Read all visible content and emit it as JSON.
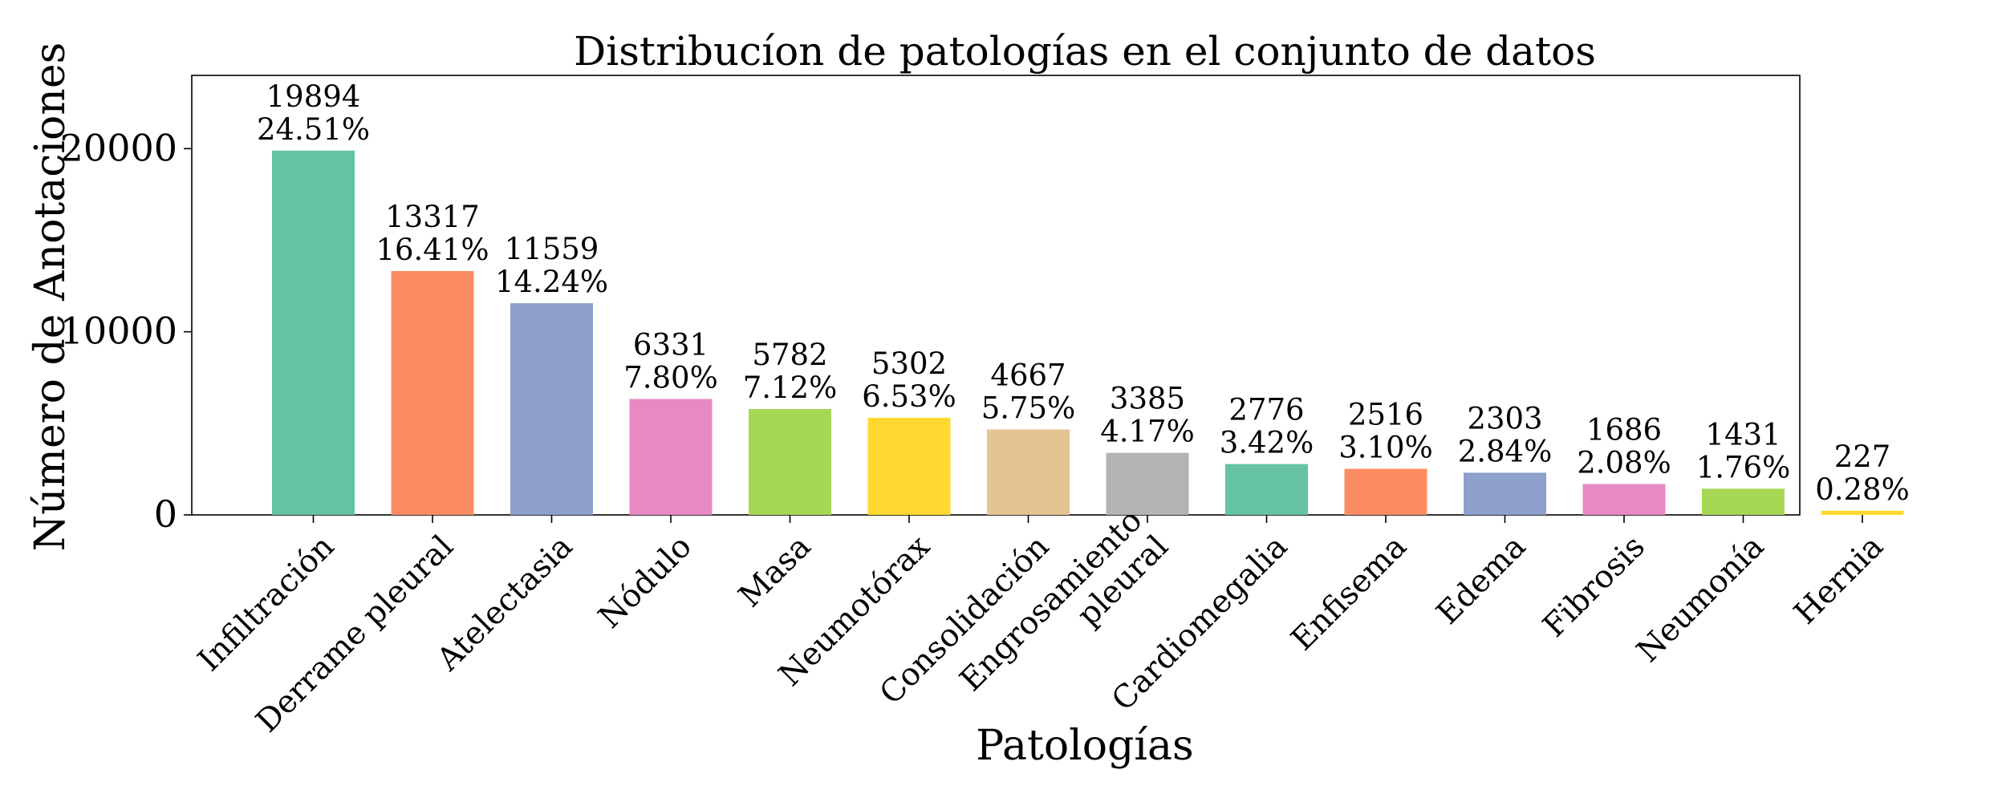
{
  "chart_data": {
    "type": "bar",
    "title": "Distribucíon de patologías en el conjunto de datos",
    "xlabel": "Patologías",
    "ylabel": "Número de Anotaciones",
    "ylim": [
      0,
      24000
    ],
    "yticks": [
      0,
      10000,
      20000
    ],
    "grid": false,
    "legend": "none",
    "categories": [
      "Infiltración",
      "Derrame pleural",
      "Atelectasia",
      "Nódulo",
      "Masa",
      "Neumotórax",
      "Consolidación",
      "Engrosamiento pleural",
      "Cardiomegalia",
      "Enfisema",
      "Edema",
      "Fibrosis",
      "Neumonía",
      "Hernia"
    ],
    "category_lines": [
      [
        "Infiltración"
      ],
      [
        "Derrame pleural"
      ],
      [
        "Atelectasia"
      ],
      [
        "Nódulo"
      ],
      [
        "Masa"
      ],
      [
        "Neumotórax"
      ],
      [
        "Consolidación"
      ],
      [
        "Engrosamiento",
        "pleural"
      ],
      [
        "Cardiomegalia"
      ],
      [
        "Enfisema"
      ],
      [
        "Edema"
      ],
      [
        "Fibrosis"
      ],
      [
        "Neumonía"
      ],
      [
        "Hernia"
      ]
    ],
    "values": [
      19894,
      13317,
      11559,
      6331,
      5782,
      5302,
      4667,
      3385,
      2776,
      2516,
      2303,
      1686,
      1431,
      227
    ],
    "percent_labels": [
      "24.51%",
      "16.41%",
      "14.24%",
      "7.80%",
      "7.12%",
      "6.53%",
      "5.75%",
      "4.17%",
      "3.42%",
      "3.10%",
      "2.84%",
      "2.08%",
      "1.76%",
      "0.28%"
    ],
    "colors": [
      "#66c2a5",
      "#fc8d62",
      "#8da0cb",
      "#e78ac3",
      "#a6d854",
      "#ffd92f",
      "#e5c494",
      "#b3b3b3",
      "#66c2a5",
      "#fc8d62",
      "#8da0cb",
      "#e78ac3",
      "#a6d854",
      "#ffd92f"
    ]
  }
}
